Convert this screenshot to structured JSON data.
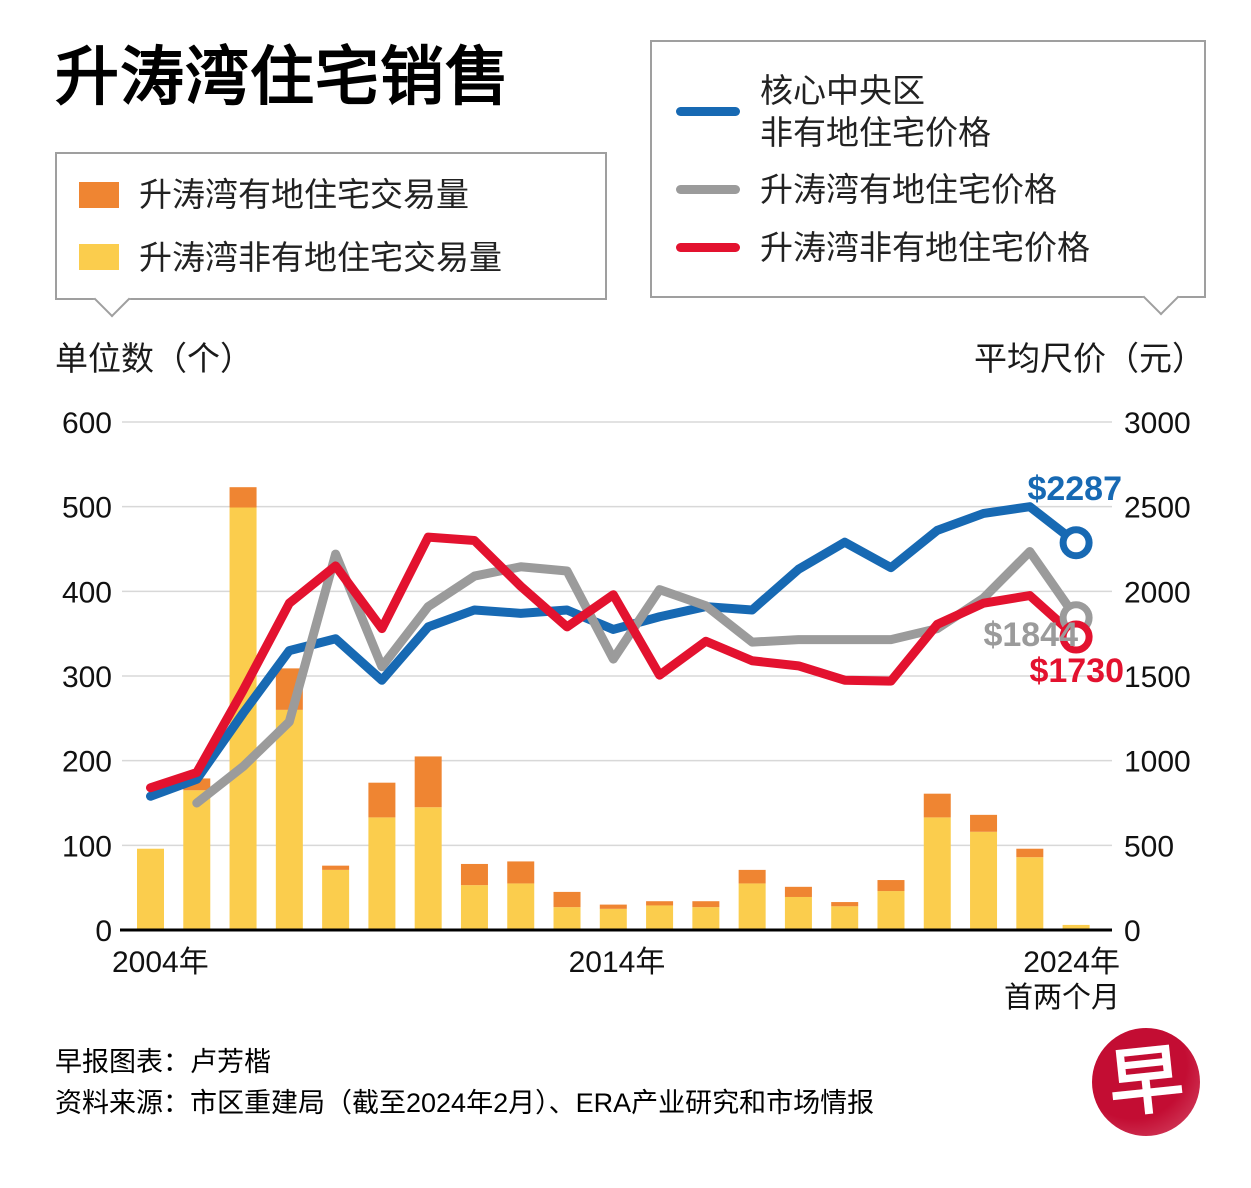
{
  "title": "升涛湾住宅销售",
  "legend_bars": {
    "items": [
      {
        "key": "landed_volume",
        "label": "升涛湾有地住宅交易量",
        "color": "#ef8532"
      },
      {
        "key": "nonlanded_volume",
        "label": "升涛湾非有地住宅交易量",
        "color": "#fbcd4d"
      }
    ]
  },
  "legend_lines": {
    "items": [
      {
        "key": "ccr_nonlanded_price",
        "lines": [
          "核心中央区",
          "非有地住宅价格"
        ],
        "color": "#1769b3"
      },
      {
        "key": "landed_price",
        "lines": [
          "升涛湾有地住宅价格"
        ],
        "color": "#9b9b9b"
      },
      {
        "key": "nonlanded_price",
        "lines": [
          "升涛湾非有地住宅价格"
        ],
        "color": "#e3122f"
      }
    ]
  },
  "left_axis": {
    "title": "单位数（个）",
    "ticks": [
      600,
      500,
      400,
      300,
      200,
      100,
      0
    ]
  },
  "right_axis": {
    "title": "平均尺价（元）",
    "ticks": [
      3000,
      2500,
      2000,
      1500,
      1000,
      500,
      0
    ]
  },
  "x_axis": {
    "labels": [
      {
        "text": "2004年"
      },
      {
        "text": "2014年"
      },
      {
        "text": "2024年",
        "sub": "首两个月"
      }
    ]
  },
  "annotations": [
    {
      "text": "$2287",
      "color": "#1769b3"
    },
    {
      "text": "$1844",
      "color": "#9b9b9b"
    },
    {
      "text": "$1730",
      "color": "#e3122f"
    }
  ],
  "footer": {
    "credit": "早报图表：卢芳楷",
    "source": "资料来源：市区重建局（截至2024年2月）、ERA产业研究和市场情报"
  },
  "logo": {
    "char": "早",
    "color": "#c30d33"
  },
  "chart_data": {
    "type": "bar+line combo",
    "categories": [
      "2004",
      "2005",
      "2006",
      "2007",
      "2008",
      "2009",
      "2010",
      "2011",
      "2012",
      "2013",
      "2014",
      "2015",
      "2016",
      "2017",
      "2018",
      "2019",
      "2020",
      "2021",
      "2022",
      "2023",
      "2024年首两个月"
    ],
    "left_axis": {
      "label": "单位数（个）",
      "range": [
        0,
        600
      ],
      "grid": true
    },
    "right_axis": {
      "label": "平均尺价（元）",
      "range": [
        0,
        3000
      ]
    },
    "bar_series": [
      {
        "name": "升涛湾有地住宅交易量",
        "key": "landed_volume",
        "color": "#ef8532",
        "axis": "left",
        "stacked_on": "nonlanded_volume",
        "values": [
          0,
          14,
          24,
          49,
          5,
          41,
          60,
          25,
          26,
          18,
          5,
          5,
          7,
          16,
          12,
          5,
          13,
          28,
          20,
          10,
          0
        ]
      },
      {
        "name": "升涛湾非有地住宅交易量",
        "key": "nonlanded_volume",
        "color": "#fbcd4d",
        "axis": "left",
        "values": [
          96,
          165,
          499,
          260,
          71,
          133,
          145,
          53,
          55,
          27,
          25,
          29,
          27,
          55,
          39,
          28,
          46,
          133,
          116,
          86,
          6
        ]
      }
    ],
    "line_series": [
      {
        "name": "核心中央区非有地住宅价格",
        "key": "ccr_nonlanded_price",
        "color": "#1769b3",
        "axis": "right",
        "values": [
          790,
          890,
          1280,
          1650,
          1720,
          1475,
          1790,
          1890,
          1870,
          1890,
          1775,
          1850,
          1910,
          1890,
          2130,
          2290,
          2140,
          2360,
          2460,
          2500,
          2287
        ]
      },
      {
        "name": "升涛湾有地住宅价格",
        "key": "landed_price",
        "color": "#9b9b9b",
        "axis": "right",
        "values": [
          null,
          750,
          965,
          1230,
          2220,
          1555,
          1910,
          2090,
          2145,
          2120,
          1600,
          2010,
          1915,
          1700,
          1715,
          1715,
          1715,
          1780,
          1960,
          2235,
          1844
        ]
      },
      {
        "name": "升涛湾非有地住宅价格",
        "key": "nonlanded_price",
        "color": "#e3122f",
        "axis": "right",
        "values": [
          840,
          930,
          1415,
          1930,
          2150,
          1780,
          2320,
          2300,
          2030,
          1790,
          1980,
          1505,
          1705,
          1590,
          1560,
          1475,
          1470,
          1805,
          1930,
          1975,
          1730
        ]
      }
    ],
    "end_labels": [
      {
        "series": "ccr_nonlanded_price",
        "text": "$2287"
      },
      {
        "series": "landed_price",
        "text": "$1844"
      },
      {
        "series": "nonlanded_price",
        "text": "$1730"
      }
    ],
    "legend_position": "top"
  }
}
